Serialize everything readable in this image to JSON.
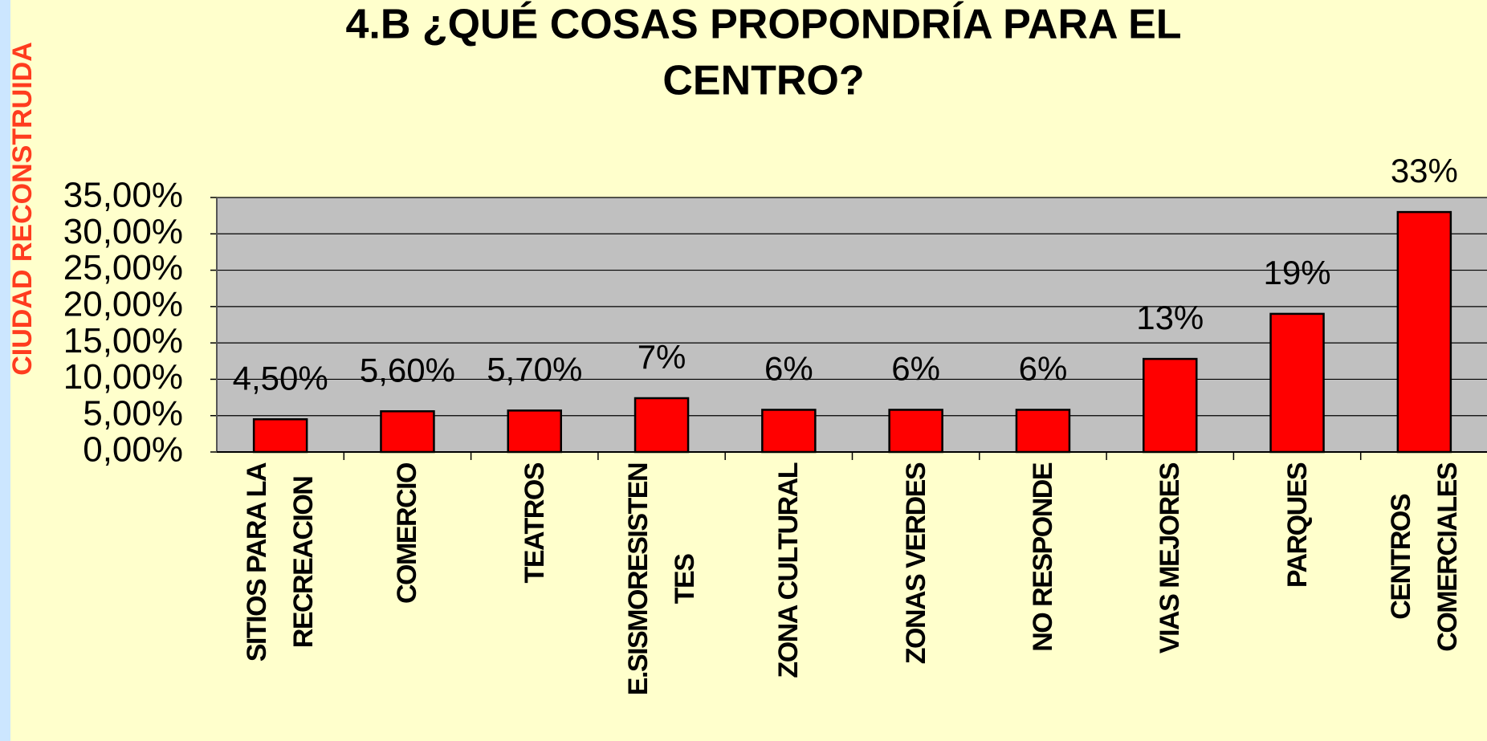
{
  "chart_data": {
    "type": "bar",
    "title": "4.B ¿QUÉ COSAS PROPONDRÍA PARA EL",
    "title_line2": "CENTRO?",
    "side_label": "CIUDAD RECONSTRUIDA",
    "categories": [
      "SITIOS PARA LA\nRECREACION",
      "COMERCIO",
      "TEATROS",
      "E.SISMORESISTEN\nTES",
      "ZONA CULTURAL",
      "ZONAS VERDES",
      "NO RESPONDE",
      "VIAS MEJORES",
      "PARQUES",
      "CENTROS\nCOMERCIALES"
    ],
    "values": [
      4.5,
      5.6,
      5.7,
      7.4,
      5.8,
      5.8,
      5.8,
      12.8,
      19,
      33
    ],
    "value_labels": [
      "4,50%",
      "5,60%",
      "5,70%",
      "7%",
      "6%",
      "6%",
      "6%",
      "13%",
      "19%",
      "33%"
    ],
    "color": "#ff0000",
    "ylim": [
      0,
      35
    ],
    "yticks": [
      {
        "value": 0,
        "label": "0,00%"
      },
      {
        "value": 5,
        "label": "5,00%"
      },
      {
        "value": 10,
        "label": "10,00%"
      },
      {
        "value": 15,
        "label": "15,00%"
      },
      {
        "value": 20,
        "label": "20,00%"
      },
      {
        "value": 25,
        "label": "25,00%"
      },
      {
        "value": 30,
        "label": "30,00%"
      },
      {
        "value": 35,
        "label": "35,00%"
      }
    ],
    "grid": true
  }
}
